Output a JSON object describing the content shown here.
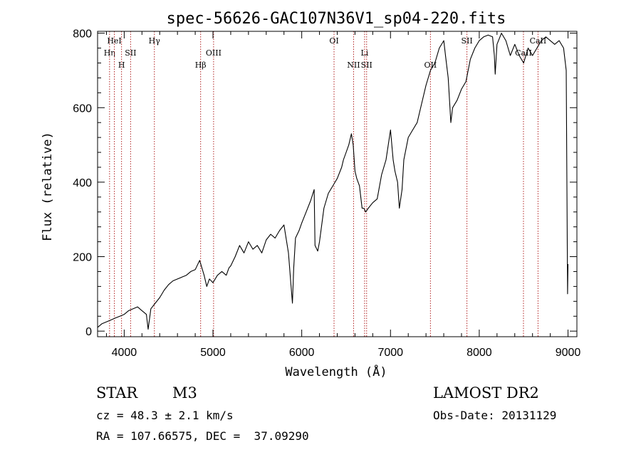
{
  "chart_data": {
    "type": "line",
    "title": "spec-56626-GAC107N36V1_sp04-220.fits",
    "xlabel": "Wavelength (Å)",
    "ylabel": "Flux (relative)",
    "xlim": [
      3700,
      9100
    ],
    "ylim": [
      -15,
      805
    ],
    "x_ticks": [
      4000,
      5000,
      6000,
      7000,
      8000,
      9000
    ],
    "y_ticks": [
      0,
      200,
      400,
      600,
      800
    ],
    "grid": false,
    "legend": "none",
    "line_color": "#000000",
    "line_markers": {
      "color": "#b22222",
      "style": "dotted",
      "lines": [
        {
          "label": "Hη",
          "x": 3835,
          "row": 2
        },
        {
          "label": "HeI",
          "x": 3889,
          "row": 1
        },
        {
          "label": "H",
          "x": 3970,
          "row": 3
        },
        {
          "label": "SII",
          "x": 4072,
          "row": 2
        },
        {
          "label": "Hγ",
          "x": 4340,
          "row": 1
        },
        {
          "label": "Hβ",
          "x": 4861,
          "row": 3
        },
        {
          "label": "OIII",
          "x": 5007,
          "row": 2
        },
        {
          "label": "OI",
          "x": 6364,
          "row": 1
        },
        {
          "label": "NII",
          "x": 6584,
          "row": 3
        },
        {
          "label": "Li",
          "x": 6708,
          "row": 2
        },
        {
          "label": "SII",
          "x": 6731,
          "row": 3
        },
        {
          "label": "OII",
          "x": 7450,
          "row": 3
        },
        {
          "label": "SII",
          "x": 7861,
          "row": 1
        },
        {
          "label": "CaII",
          "x": 8498,
          "row": 2
        },
        {
          "label": "CaII",
          "x": 8662,
          "row": 1
        }
      ]
    },
    "series": [
      {
        "x": [
          3700,
          3750,
          3800,
          3850,
          3900,
          3950,
          4000,
          4050,
          4100,
          4150,
          4200,
          4250,
          4270,
          4300,
          4350,
          4400,
          4450,
          4500,
          4550,
          4600,
          4650,
          4700,
          4750,
          4800,
          4850,
          4900,
          4930,
          4960,
          5000,
          5050,
          5100,
          5150,
          5180,
          5200,
          5250,
          5300,
          5350,
          5400,
          5450,
          5500,
          5550,
          5600,
          5650,
          5700,
          5750,
          5800,
          5850,
          5880,
          5895,
          5910,
          5930,
          5970,
          6000,
          6050,
          6100,
          6140,
          6150,
          6180,
          6200,
          6250,
          6300,
          6350,
          6400,
          6450,
          6470,
          6500,
          6530,
          6560,
          6580,
          6600,
          6620,
          6650,
          6680,
          6700,
          6720,
          6750,
          6800,
          6850,
          6900,
          6950,
          7000,
          7030,
          7050,
          7080,
          7100,
          7130,
          7150,
          7200,
          7250,
          7300,
          7350,
          7400,
          7450,
          7500,
          7550,
          7600,
          7620,
          7650,
          7680,
          7700,
          7750,
          7800,
          7850,
          7900,
          7950,
          8000,
          8050,
          8100,
          8150,
          8170,
          8180,
          8200,
          8250,
          8300,
          8350,
          8400,
          8450,
          8500,
          8550,
          8600,
          8650,
          8700,
          8750,
          8800,
          8850,
          8900,
          8950,
          8980,
          8995,
          9000
        ],
        "y": [
          10,
          20,
          25,
          30,
          35,
          40,
          45,
          55,
          60,
          65,
          55,
          45,
          5,
          60,
          75,
          90,
          110,
          125,
          135,
          140,
          145,
          150,
          160,
          165,
          190,
          150,
          120,
          140,
          130,
          150,
          160,
          150,
          170,
          175,
          200,
          230,
          210,
          240,
          220,
          230,
          210,
          245,
          260,
          250,
          270,
          285,
          210,
          120,
          75,
          170,
          250,
          270,
          290,
          320,
          350,
          380,
          230,
          215,
          240,
          330,
          370,
          390,
          410,
          440,
          460,
          480,
          500,
          530,
          500,
          430,
          410,
          390,
          330,
          330,
          320,
          330,
          345,
          355,
          420,
          460,
          540,
          460,
          430,
          400,
          330,
          380,
          460,
          520,
          540,
          560,
          610,
          660,
          700,
          720,
          760,
          780,
          740,
          680,
          560,
          600,
          620,
          650,
          670,
          730,
          760,
          780,
          790,
          795,
          790,
          740,
          690,
          770,
          800,
          780,
          740,
          770,
          740,
          720,
          760,
          740,
          760,
          780,
          790,
          780,
          770,
          780,
          760,
          700,
          100,
          180
        ]
      }
    ]
  },
  "info": {
    "obj_class": "STAR",
    "subclass": "M3",
    "survey": "LAMOST DR2",
    "cz": "cz = 48.3 ± 2.1 km/s",
    "obs_date": "Obs-Date: 20131129",
    "radec": "RA = 107.66575, DEC =  37.09290"
  }
}
